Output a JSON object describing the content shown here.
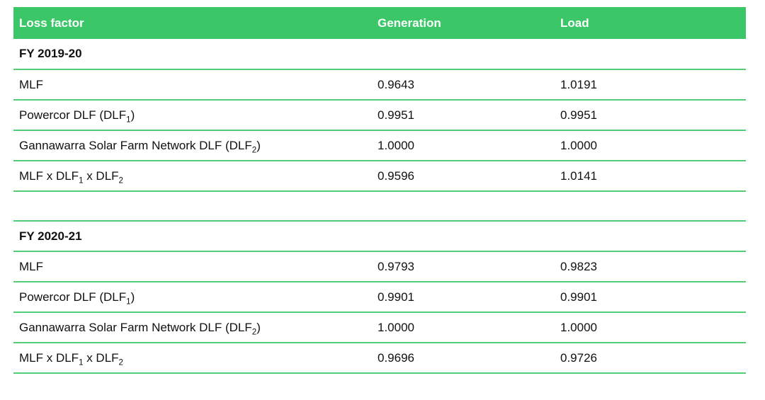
{
  "colors": {
    "header_bg": "#3bc768",
    "divider": "#50cd78",
    "header_text": "#ffffff",
    "body_text": "#111111"
  },
  "table": {
    "columns": [
      "Loss factor",
      "Generation",
      "Load"
    ],
    "sections": [
      {
        "title": "FY 2019-20",
        "rows": [
          {
            "label": [
              {
                "t": "MLF"
              }
            ],
            "generation": "0.9643",
            "load": "1.0191"
          },
          {
            "label": [
              {
                "t": "Powercor DLF (DLF"
              },
              {
                "t": "1",
                "sub": true
              },
              {
                "t": ")"
              }
            ],
            "generation": "0.9951",
            "load": "0.9951"
          },
          {
            "label": [
              {
                "t": "Gannawarra Solar Farm Network DLF (DLF"
              },
              {
                "t": "2",
                "sub": true
              },
              {
                "t": ")"
              }
            ],
            "generation": "1.0000",
            "load": "1.0000"
          },
          {
            "label": [
              {
                "t": "MLF x DLF"
              },
              {
                "t": "1",
                "sub": true
              },
              {
                "t": " x DLF"
              },
              {
                "t": "2",
                "sub": true
              }
            ],
            "generation": "0.9596",
            "load": "1.0141"
          }
        ]
      },
      {
        "title": "FY 2020-21",
        "rows": [
          {
            "label": [
              {
                "t": "MLF"
              }
            ],
            "generation": "0.9793",
            "load": "0.9823"
          },
          {
            "label": [
              {
                "t": "Powercor DLF (DLF"
              },
              {
                "t": "1",
                "sub": true
              },
              {
                "t": ")"
              }
            ],
            "generation": "0.9901",
            "load": "0.9901"
          },
          {
            "label": [
              {
                "t": "Gannawarra Solar Farm Network DLF (DLF"
              },
              {
                "t": "2",
                "sub": true
              },
              {
                "t": ")"
              }
            ],
            "generation": "1.0000",
            "load": "1.0000"
          },
          {
            "label": [
              {
                "t": "MLF x DLF"
              },
              {
                "t": "1",
                "sub": true
              },
              {
                "t": " x DLF"
              },
              {
                "t": "2",
                "sub": true
              }
            ],
            "generation": "0.9696",
            "load": "0.9726"
          }
        ]
      }
    ]
  }
}
